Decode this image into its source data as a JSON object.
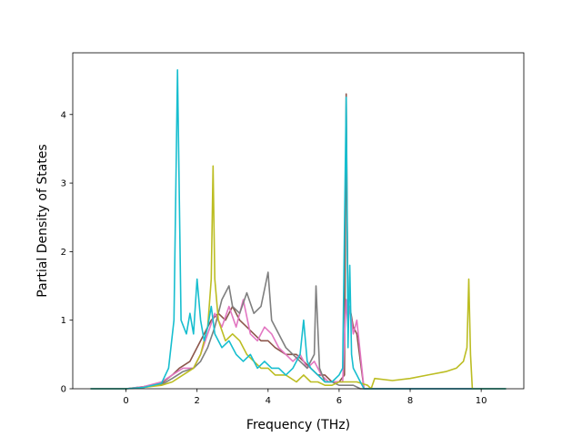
{
  "chart_data": {
    "type": "line",
    "title": "",
    "xlabel": "Frequency (THz)",
    "ylabel": "Partial Density of States",
    "xlim": [
      -1.5,
      11.2
    ],
    "ylim": [
      0,
      4.9
    ],
    "xticks": [
      0,
      2,
      4,
      6,
      8,
      10
    ],
    "yticks": [
      0,
      1,
      2,
      3,
      4
    ],
    "grid": false,
    "legend": "none",
    "series": [
      {
        "color": "#8c564b",
        "x": [
          -1.0,
          0.0,
          0.5,
          1.0,
          1.3,
          1.5,
          1.8,
          2.0,
          2.2,
          2.4,
          2.6,
          2.8,
          3.0,
          3.2,
          3.4,
          3.6,
          3.8,
          4.0,
          4.2,
          4.5,
          4.8,
          5.0,
          5.2,
          5.4,
          5.6,
          5.8,
          6.0,
          6.15,
          6.2,
          6.25,
          6.3,
          6.4,
          6.5,
          6.6,
          6.7,
          6.8,
          10.7
        ],
        "y": [
          0,
          0,
          0.03,
          0.08,
          0.2,
          0.3,
          0.4,
          0.6,
          0.8,
          1.0,
          1.1,
          1.0,
          1.2,
          1.0,
          0.9,
          0.8,
          0.7,
          0.7,
          0.6,
          0.5,
          0.5,
          0.4,
          0.3,
          0.2,
          0.2,
          0.1,
          0.1,
          0.2,
          4.3,
          1.0,
          1.2,
          0.9,
          0.8,
          0.4,
          0.0,
          0.0,
          0.0
        ]
      },
      {
        "color": "#e377c2",
        "x": [
          -1.0,
          0.0,
          0.5,
          1.0,
          1.3,
          1.6,
          1.9,
          2.1,
          2.3,
          2.5,
          2.7,
          2.9,
          3.1,
          3.3,
          3.5,
          3.7,
          3.9,
          4.1,
          4.3,
          4.5,
          4.7,
          4.9,
          5.1,
          5.3,
          5.5,
          5.7,
          5.9,
          6.1,
          6.2,
          6.25,
          6.3,
          6.4,
          6.5,
          6.6,
          6.7,
          10.7
        ],
        "y": [
          0,
          0,
          0.03,
          0.1,
          0.2,
          0.3,
          0.3,
          0.5,
          0.8,
          1.1,
          0.9,
          1.2,
          0.9,
          1.3,
          0.8,
          0.7,
          0.9,
          0.8,
          0.6,
          0.5,
          0.4,
          0.5,
          0.3,
          0.4,
          0.2,
          0.1,
          0.1,
          0.1,
          1.3,
          0.9,
          1.2,
          0.8,
          1.0,
          0.5,
          0.0,
          0.0
        ]
      },
      {
        "color": "#7f7f7f",
        "x": [
          -1.0,
          0.0,
          0.5,
          1.0,
          1.3,
          1.6,
          1.9,
          2.1,
          2.3,
          2.5,
          2.7,
          2.9,
          3.0,
          3.2,
          3.4,
          3.6,
          3.8,
          4.0,
          4.1,
          4.3,
          4.5,
          4.7,
          4.9,
          5.1,
          5.3,
          5.35,
          5.45,
          5.6,
          5.8,
          6.0,
          6.2,
          6.4,
          6.6,
          10.7
        ],
        "y": [
          0,
          0,
          0.02,
          0.06,
          0.15,
          0.25,
          0.3,
          0.4,
          0.6,
          0.9,
          1.3,
          1.5,
          1.2,
          1.1,
          1.4,
          1.1,
          1.2,
          1.7,
          1.0,
          0.8,
          0.6,
          0.5,
          0.4,
          0.3,
          0.5,
          1.5,
          0.3,
          0.1,
          0.1,
          0.05,
          0.05,
          0.05,
          0.0,
          0.0
        ]
      },
      {
        "color": "#bcbd22",
        "x": [
          -1.0,
          0.0,
          0.5,
          1.0,
          1.3,
          1.6,
          1.9,
          2.1,
          2.3,
          2.4,
          2.45,
          2.5,
          2.6,
          2.8,
          3.0,
          3.2,
          3.4,
          3.6,
          3.8,
          4.0,
          4.2,
          4.5,
          4.8,
          5.0,
          5.2,
          5.4,
          5.6,
          5.8,
          6.0,
          6.2,
          6.5,
          6.8,
          6.9,
          7.0,
          7.5,
          8.0,
          8.5,
          9.0,
          9.3,
          9.5,
          9.6,
          9.65,
          9.7,
          9.75,
          10.7
        ],
        "y": [
          0,
          0,
          0.02,
          0.05,
          0.1,
          0.2,
          0.3,
          0.5,
          0.9,
          1.6,
          3.25,
          1.6,
          1.0,
          0.7,
          0.8,
          0.7,
          0.5,
          0.4,
          0.3,
          0.3,
          0.2,
          0.2,
          0.1,
          0.2,
          0.1,
          0.1,
          0.05,
          0.05,
          0.1,
          0.1,
          0.1,
          0.05,
          0.0,
          0.15,
          0.12,
          0.15,
          0.2,
          0.25,
          0.3,
          0.4,
          0.6,
          1.6,
          0.5,
          0.0,
          0.0
        ]
      },
      {
        "color": "#17becf",
        "x": [
          -1.0,
          0.0,
          0.5,
          1.0,
          1.2,
          1.35,
          1.45,
          1.55,
          1.7,
          1.8,
          1.9,
          2.0,
          2.1,
          2.2,
          2.3,
          2.4,
          2.5,
          2.7,
          2.9,
          3.1,
          3.3,
          3.5,
          3.7,
          3.9,
          4.1,
          4.3,
          4.5,
          4.7,
          4.9,
          5.0,
          5.1,
          5.2,
          5.4,
          5.6,
          5.8,
          6.0,
          6.1,
          6.2,
          6.25,
          6.3,
          6.35,
          6.4,
          6.5,
          6.6,
          6.7,
          10.7
        ],
        "y": [
          0,
          0,
          0.02,
          0.08,
          0.3,
          1.0,
          4.65,
          1.0,
          0.8,
          1.1,
          0.8,
          1.6,
          1.0,
          0.7,
          0.9,
          1.2,
          0.8,
          0.6,
          0.7,
          0.5,
          0.4,
          0.5,
          0.3,
          0.4,
          0.3,
          0.3,
          0.2,
          0.3,
          0.5,
          1.0,
          0.4,
          0.3,
          0.2,
          0.1,
          0.1,
          0.2,
          0.3,
          4.25,
          0.6,
          1.8,
          0.5,
          0.3,
          0.2,
          0.1,
          0.0,
          0.0
        ]
      }
    ]
  }
}
